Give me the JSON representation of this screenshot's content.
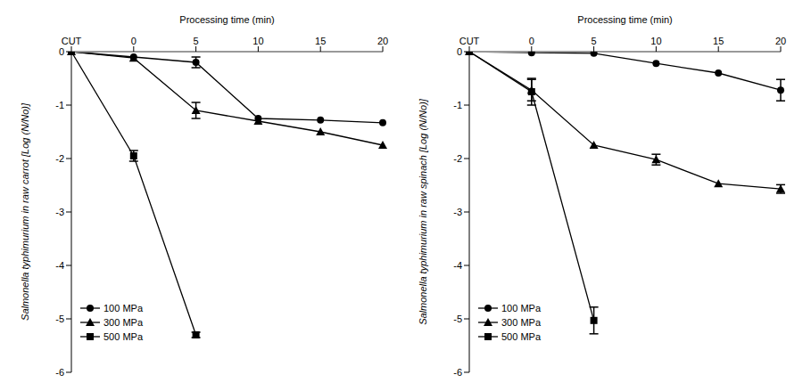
{
  "chart_data": [
    {
      "type": "line",
      "x_label": "Processing time (min)",
      "y_label": "Salmonella typhimurium in raw carrot [Log (N/No)]",
      "categories": [
        "CUT",
        "0",
        "5",
        "10",
        "15",
        "20"
      ],
      "ylim": [
        -6,
        0
      ],
      "yticks": [
        -6,
        -5,
        -4,
        -3,
        -2,
        -1,
        0
      ],
      "legend": "lower left",
      "grid": false,
      "series": [
        {
          "name": "100 MPa",
          "color": "#000000",
          "marker": "circle",
          "values": [
            0,
            -0.1,
            -0.2,
            -1.25,
            -1.28,
            -1.33
          ],
          "errors": [
            null,
            null,
            0.1,
            null,
            null,
            null
          ]
        },
        {
          "name": "300 MPa",
          "color": "#000000",
          "marker": "triangle",
          "values": [
            0,
            -0.12,
            -1.1,
            -1.3,
            -1.5,
            -1.75
          ],
          "errors": [
            null,
            null,
            0.15,
            null,
            null,
            null
          ]
        },
        {
          "name": "500 MPa",
          "color": "#000000",
          "marker": "square",
          "values": [
            0,
            -1.95,
            -5.3,
            null,
            null,
            null
          ],
          "errors": [
            null,
            0.1,
            0.05,
            null,
            null,
            null
          ]
        }
      ]
    },
    {
      "type": "line",
      "x_label": "Processing time (min)",
      "y_label": "Salmonella typhimurium in raw spinach [Log (N/No)]",
      "categories": [
        "CUT",
        "0",
        "5",
        "10",
        "15",
        "20"
      ],
      "ylim": [
        -6,
        0
      ],
      "yticks": [
        -6,
        -5,
        -4,
        -3,
        -2,
        -1,
        0
      ],
      "legend": "lower left",
      "grid": false,
      "series": [
        {
          "name": "100 MPa",
          "color": "#000000",
          "marker": "circle",
          "values": [
            0,
            -0.02,
            -0.03,
            -0.22,
            -0.4,
            -0.72
          ],
          "errors": [
            null,
            null,
            null,
            null,
            null,
            0.2
          ]
        },
        {
          "name": "300 MPa",
          "color": "#000000",
          "marker": "triangle",
          "values": [
            0,
            -0.72,
            -1.75,
            -2.02,
            -2.47,
            -2.57
          ],
          "errors": [
            null,
            0.2,
            null,
            0.1,
            null,
            0.08
          ]
        },
        {
          "name": "500 MPa",
          "color": "#000000",
          "marker": "square",
          "values": [
            0,
            -0.75,
            -5.03,
            null,
            null,
            null
          ],
          "errors": [
            null,
            0.25,
            0.25,
            null,
            null,
            null
          ]
        }
      ]
    }
  ]
}
